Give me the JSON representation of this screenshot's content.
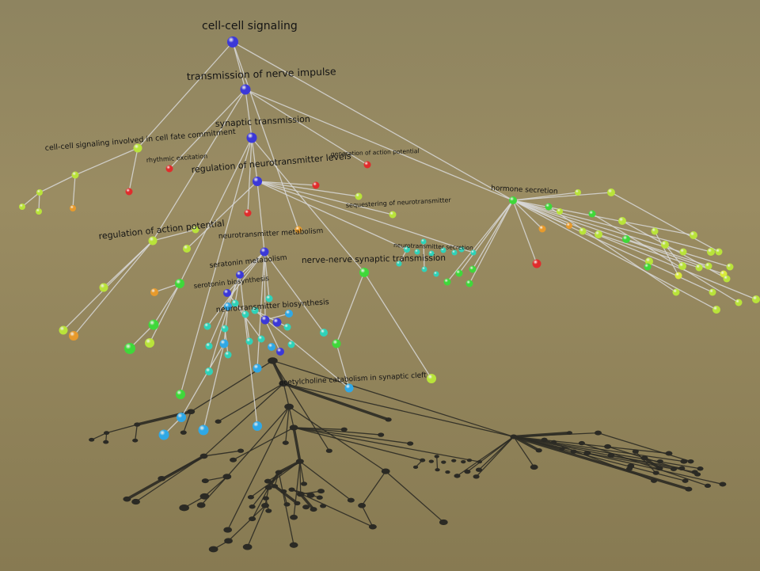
{
  "colors": {
    "edge": "#d8d8d8",
    "shadow": "#2b2a24",
    "blue": "#3b38d8",
    "green": "#3fd83a",
    "lime": "#b9e33a",
    "yellow": "#d9ea3a",
    "orange": "#e79a2c",
    "red": "#e02c2c",
    "teal": "#2fd2b8",
    "sky": "#2fa8e6"
  },
  "labels": {
    "cell_cell_signaling": "cell-cell signaling",
    "transmission_nerve_impulse": "transmission of nerve impulse",
    "synaptic_transmission": "synaptic transmission",
    "cell_fate": "cell-cell signaling involved in cell fate commitment",
    "rhythmic_excitation": "rhythmic excitation",
    "generation_action_potential": "generation of action potential",
    "regulation_neurotransmitter_levels": "regulation of neurotransmitter levels",
    "sequestering": "sequestering of neurotransmitter",
    "hormone_secretion": "hormone secretion",
    "regulation_action_potential": "regulation of action potential",
    "neurotransmitter_metabolism": "neurotransmitter metabolism",
    "neurotransmitter_secretion": "neurotransmitter secretion",
    "serotonin_metabolism": "seratonin metabolism",
    "serotonin_biosynthesis": "serotonin biosynthesis",
    "nerve_nerve": "nerve-nerve synaptic transmission",
    "neurotransmitter_biosynthesis": "neurotransmitter biosynthesis",
    "acetylcholine": "acetylcholine catabolism in synaptic cleft"
  }
}
